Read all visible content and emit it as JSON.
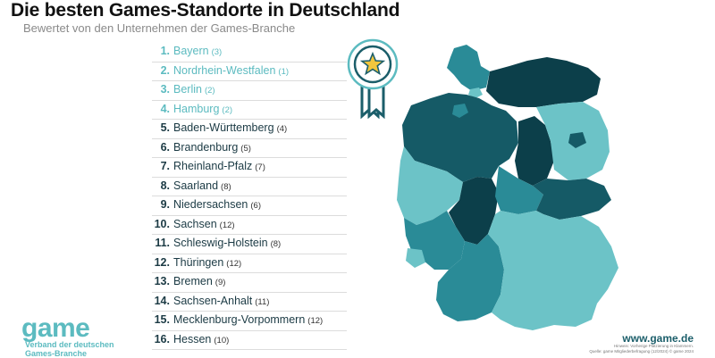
{
  "header": {
    "title": "Die besten Games-Standorte in Deutschland",
    "subtitle": "Bewertet von den Unternehmen der Games-Branche"
  },
  "chart_data": {
    "type": "table",
    "title": "Die besten Games-Standorte in Deutschland",
    "subtitle": "Bewertet von den Unternehmen der Games-Branche",
    "rows": [
      {
        "rank": "1.",
        "name": "Bayern",
        "note": "(3)",
        "tier": "top"
      },
      {
        "rank": "2.",
        "name": "Nordrhein-Westfalen",
        "note": "(1)",
        "tier": "top"
      },
      {
        "rank": "3.",
        "name": "Berlin",
        "note": "(2)",
        "tier": "top"
      },
      {
        "rank": "4.",
        "name": "Hamburg",
        "note": "(2)",
        "tier": "top"
      },
      {
        "rank": "5.",
        "name": "Baden-Württemberg",
        "note": "(4)",
        "tier": "rest"
      },
      {
        "rank": "6.",
        "name": "Brandenburg",
        "note": "(5)",
        "tier": "rest"
      },
      {
        "rank": "7.",
        "name": "Rheinland-Pfalz",
        "note": "(7)",
        "tier": "rest"
      },
      {
        "rank": "8.",
        "name": "Saarland",
        "note": "(8)",
        "tier": "rest"
      },
      {
        "rank": "9.",
        "name": "Niedersachsen",
        "note": "(6)",
        "tier": "rest"
      },
      {
        "rank": "10.",
        "name": "Sachsen",
        "note": "(12)",
        "tier": "rest"
      },
      {
        "rank": "11.",
        "name": "Schleswig-Holstein",
        "note": "(8)",
        "tier": "rest"
      },
      {
        "rank": "12.",
        "name": "Thüringen",
        "note": "(12)",
        "tier": "rest"
      },
      {
        "rank": "13.",
        "name": "Bremen",
        "note": "(9)",
        "tier": "rest"
      },
      {
        "rank": "14.",
        "name": "Sachsen-Anhalt",
        "note": "(11)",
        "tier": "rest"
      },
      {
        "rank": "15.",
        "name": "Mecklenburg-Vorpommern",
        "note": "(12)",
        "tier": "rest"
      },
      {
        "rank": "16.",
        "name": "Hessen",
        "note": "(10)",
        "tier": "rest"
      }
    ],
    "map_colors": {
      "light": "#6cc3c7",
      "mid": "#2a8b97",
      "dark": "#155a66",
      "darkest": "#0c3f4a"
    },
    "badge_icon": "star-ribbon-badge-icon"
  },
  "branding": {
    "logo_word": "game",
    "logo_line1": "Verband der deutschen",
    "logo_line2": "Games-Branche",
    "website": "www.game.de",
    "footnote_line1": "Hinweis: Vorherige Platzierung in Klammern.",
    "footnote_line2": "Quelle: game Mitgliederbefragung (12/2024) © game 2024"
  },
  "colors": {
    "accent": "#5cbbc0",
    "dark_text": "#1b3a44"
  }
}
